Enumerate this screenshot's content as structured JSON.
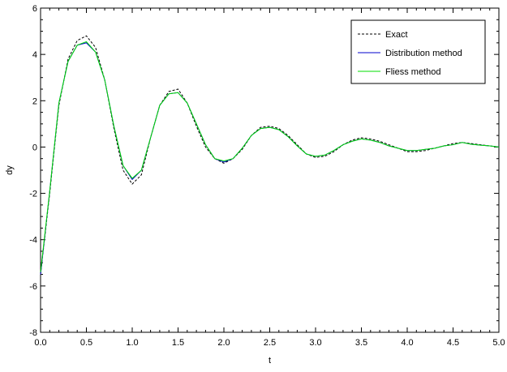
{
  "chart_data": {
    "type": "line",
    "title": "",
    "xlabel": "t",
    "ylabel": "dy",
    "xlim": [
      0.0,
      5.0
    ],
    "ylim": [
      -8,
      6
    ],
    "grid": false,
    "legend_position": "top-right",
    "x_ticks": [
      "0.0",
      "0.5",
      "1.0",
      "1.5",
      "2.0",
      "2.5",
      "3.0",
      "3.5",
      "4.0",
      "4.5",
      "5.0"
    ],
    "y_ticks": [
      "-8",
      "-6",
      "-4",
      "-2",
      "0",
      "2",
      "4",
      "6"
    ],
    "series": [
      {
        "name": "Exact",
        "color": "#000000",
        "style": "dashed",
        "x": [
          0.0,
          0.1,
          0.2,
          0.3,
          0.4,
          0.5,
          0.6,
          0.7,
          0.8,
          0.9,
          1.0,
          1.1,
          1.2,
          1.3,
          1.4,
          1.5,
          1.6,
          1.7,
          1.8,
          1.9,
          2.0,
          2.1,
          2.2,
          2.3,
          2.4,
          2.5,
          2.6,
          2.7,
          2.8,
          2.9,
          3.0,
          3.1,
          3.2,
          3.3,
          3.4,
          3.5,
          3.6,
          3.7,
          3.8,
          3.9,
          4.0,
          4.1,
          4.2,
          4.3,
          4.4,
          4.5,
          4.6,
          4.7,
          4.8,
          4.9,
          5.0
        ],
        "y": [
          -5.5,
          -2.0,
          1.8,
          3.8,
          4.6,
          4.8,
          4.3,
          2.9,
          0.8,
          -1.0,
          -1.6,
          -1.2,
          0.4,
          1.8,
          2.4,
          2.5,
          1.9,
          0.9,
          0.0,
          -0.5,
          -0.7,
          -0.5,
          -0.1,
          0.5,
          0.85,
          0.9,
          0.8,
          0.5,
          0.1,
          -0.3,
          -0.45,
          -0.4,
          -0.2,
          0.1,
          0.3,
          0.4,
          0.35,
          0.25,
          0.1,
          -0.05,
          -0.2,
          -0.2,
          -0.15,
          -0.05,
          0.05,
          0.15,
          0.2,
          0.15,
          0.1,
          0.05,
          0.0
        ]
      },
      {
        "name": "Distribution method",
        "color": "#0000cc",
        "style": "solid",
        "x": [
          0.0,
          0.1,
          0.2,
          0.3,
          0.4,
          0.5,
          0.6,
          0.7,
          0.8,
          0.9,
          1.0,
          1.1,
          1.2,
          1.3,
          1.4,
          1.5,
          1.6,
          1.7,
          1.8,
          1.9,
          2.0,
          2.1,
          2.2,
          2.3,
          2.4,
          2.5,
          2.6,
          2.7,
          2.8,
          2.9,
          3.0,
          3.1,
          3.2,
          3.3,
          3.4,
          3.5,
          3.6,
          3.7,
          3.8,
          3.9,
          4.0,
          4.1,
          4.2,
          4.3,
          4.4,
          4.5,
          4.6,
          4.7,
          4.8,
          4.9,
          5.0
        ],
        "y": [
          -5.5,
          -1.9,
          1.9,
          3.7,
          4.4,
          4.5,
          4.1,
          2.9,
          0.9,
          -0.8,
          -1.4,
          -1.0,
          0.4,
          1.8,
          2.3,
          2.35,
          1.9,
          1.0,
          0.1,
          -0.5,
          -0.65,
          -0.5,
          -0.05,
          0.5,
          0.8,
          0.85,
          0.75,
          0.45,
          0.05,
          -0.3,
          -0.4,
          -0.35,
          -0.15,
          0.1,
          0.25,
          0.35,
          0.3,
          0.2,
          0.05,
          -0.05,
          -0.15,
          -0.15,
          -0.1,
          -0.05,
          0.05,
          0.1,
          0.2,
          0.12,
          0.08,
          0.05,
          0.0
        ]
      },
      {
        "name": "Fliess method",
        "color": "#00dd00",
        "style": "solid",
        "x": [
          0.0,
          0.1,
          0.2,
          0.3,
          0.4,
          0.5,
          0.6,
          0.7,
          0.8,
          0.9,
          1.0,
          1.1,
          1.2,
          1.3,
          1.4,
          1.5,
          1.6,
          1.7,
          1.8,
          1.9,
          2.0,
          2.1,
          2.2,
          2.3,
          2.4,
          2.5,
          2.6,
          2.7,
          2.8,
          2.9,
          3.0,
          3.1,
          3.2,
          3.3,
          3.4,
          3.5,
          3.6,
          3.7,
          3.8,
          3.9,
          4.0,
          4.1,
          4.2,
          4.3,
          4.4,
          4.5,
          4.6,
          4.7,
          4.8,
          4.9,
          5.0
        ],
        "y": [
          -5.4,
          -1.9,
          1.9,
          3.7,
          4.4,
          4.55,
          4.1,
          2.9,
          0.9,
          -0.8,
          -1.35,
          -1.0,
          0.4,
          1.8,
          2.3,
          2.35,
          1.9,
          1.0,
          0.1,
          -0.5,
          -0.6,
          -0.5,
          -0.05,
          0.5,
          0.8,
          0.85,
          0.75,
          0.45,
          0.05,
          -0.3,
          -0.4,
          -0.35,
          -0.15,
          0.1,
          0.25,
          0.35,
          0.3,
          0.2,
          0.05,
          -0.05,
          -0.15,
          -0.15,
          -0.1,
          -0.05,
          0.05,
          0.1,
          0.2,
          0.12,
          0.08,
          0.05,
          0.0
        ]
      }
    ]
  }
}
